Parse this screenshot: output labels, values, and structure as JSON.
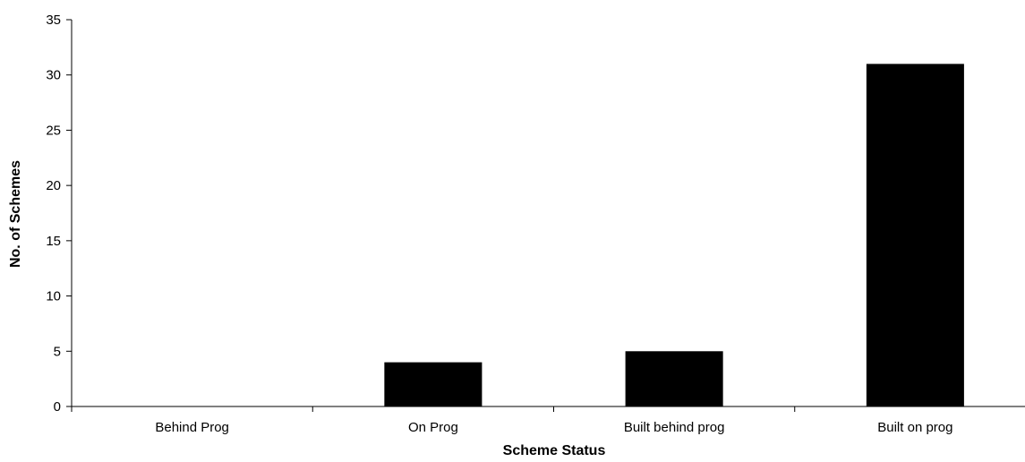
{
  "chart_data": {
    "type": "bar",
    "title": "",
    "xlabel": "Scheme Status",
    "ylabel": "No. of Schemes",
    "categories": [
      "Behind Prog",
      "On Prog",
      "Built behind prog",
      "Built on prog"
    ],
    "values": [
      0,
      4,
      5,
      31
    ],
    "ylim": [
      0,
      35
    ],
    "yticks": [
      0,
      5,
      10,
      15,
      20,
      25,
      30,
      35
    ],
    "grid": false,
    "bar_color": "#000000"
  }
}
